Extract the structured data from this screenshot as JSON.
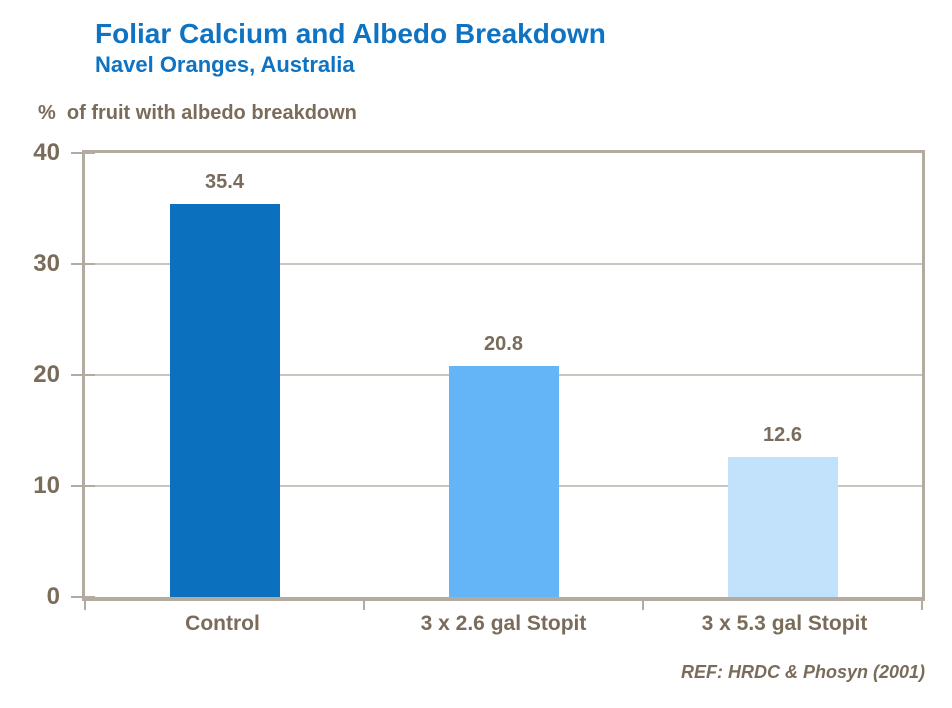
{
  "header": {
    "title": "Foliar Calcium and Albedo Breakdown",
    "subtitle": "Navel Oranges, Australia"
  },
  "chart_data": {
    "type": "bar",
    "title": "Foliar Calcium and Albedo Breakdown",
    "subtitle": "Navel Oranges, Australia",
    "ylabel": "%  of fruit with albedo breakdown",
    "xlabel": "",
    "categories": [
      "Control",
      "3 x 2.6 gal Stopit",
      "3 x 5.3 gal Stopit"
    ],
    "values": [
      35.4,
      20.8,
      12.6
    ],
    "data_labels": [
      "35.4",
      "20.8",
      "12.6"
    ],
    "ylim": [
      0,
      40
    ],
    "yticks": [
      0,
      10,
      20,
      30,
      40
    ],
    "grid": "horizontal",
    "legend": "none",
    "bar_colors": [
      "#0b70bd",
      "#64b5f7",
      "#c2e1fb"
    ]
  },
  "footer": {
    "reference": "REF: HRDC & Phosyn (2001)"
  },
  "colors": {
    "background": "#ffffff",
    "title_blue": "#0e73c2",
    "text_brown": "#7a6c5a",
    "frame": "#b3aaa0",
    "gridline": "#c9c4bd"
  }
}
